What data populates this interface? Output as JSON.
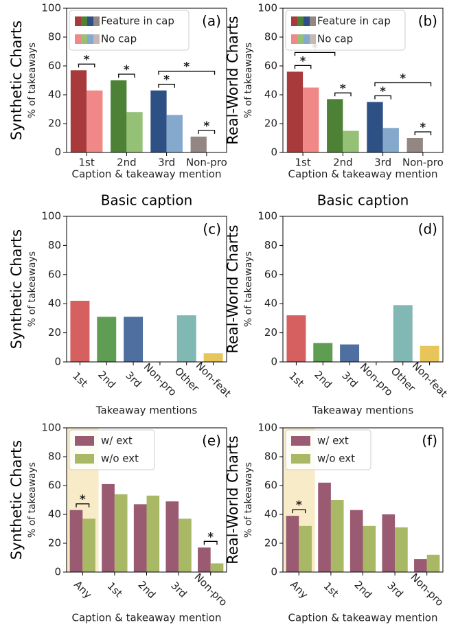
{
  "chart_data": [
    {
      "type": "bar",
      "row_label": "Synthetic Charts",
      "ylabel": "% of takeaways",
      "xlabel": "Caption & takeaway mention",
      "panel": "(a)",
      "categories": [
        "1st",
        "2nd",
        "3rd",
        "Non-pro"
      ],
      "series": [
        {
          "name": "Feature in cap",
          "colors": [
            "#a83a3c",
            "#4d8236",
            "#2d5085",
            "#938683"
          ],
          "values": [
            57,
            50,
            43,
            11
          ]
        },
        {
          "name": "No cap",
          "colors": [
            "#f08888",
            "#95c176",
            "#85a9cc",
            "#c5b8b4"
          ],
          "values": [
            43,
            28,
            26,
            null
          ]
        }
      ],
      "ylim": [
        0,
        100
      ],
      "yticks": [
        0,
        20,
        40,
        60,
        80,
        100
      ],
      "legend": "upper left",
      "significance": [
        {
          "text": "*",
          "pair": [
            [
              0,
              0
            ],
            [
              1,
              0
            ]
          ]
        },
        {
          "text": "*",
          "pair": [
            [
              0,
              1
            ],
            [
              1,
              1
            ]
          ]
        },
        {
          "text": "*",
          "pair": [
            [
              0,
              2
            ],
            [
              1,
              2
            ]
          ]
        },
        {
          "text": "*",
          "pair": [
            [
              0,
              2
            ],
            [
              1,
              3
            ]
          ]
        },
        {
          "text": "*",
          "pair": [
            [
              0,
              3
            ],
            [
              1,
              3
            ]
          ]
        }
      ]
    },
    {
      "type": "bar",
      "row_label": "Real-World Charts",
      "ylabel": "% of takeaways",
      "xlabel": "Caption & takeaway mention",
      "panel": "(b)",
      "categories": [
        "1st",
        "2nd",
        "3rd",
        "Non-pro"
      ],
      "series": [
        {
          "name": "Feature in cap",
          "colors": [
            "#a83a3c",
            "#4d8236",
            "#2d5085",
            "#938683"
          ],
          "values": [
            56,
            37,
            35,
            10
          ]
        },
        {
          "name": "No cap",
          "colors": [
            "#f08888",
            "#95c176",
            "#85a9cc",
            "#c5b8b4"
          ],
          "values": [
            45,
            15,
            17,
            null
          ]
        }
      ],
      "ylim": [
        0,
        100
      ],
      "yticks": [
        0,
        20,
        40,
        60,
        80,
        100
      ],
      "legend": "upper left",
      "significance": [
        {
          "text": "*",
          "pair": [
            [
              0,
              0
            ],
            [
              1,
              0
            ]
          ]
        },
        {
          "text": "*",
          "pair": [
            [
              0,
              0
            ],
            [
              0,
              1
            ]
          ]
        },
        {
          "text": "*",
          "pair": [
            [
              0,
              1
            ],
            [
              1,
              1
            ]
          ]
        },
        {
          "text": "*",
          "pair": [
            [
              0,
              2
            ],
            [
              1,
              2
            ]
          ]
        },
        {
          "text": "*",
          "pair": [
            [
              0,
              2
            ],
            [
              1,
              3
            ]
          ]
        },
        {
          "text": "*",
          "pair": [
            [
              0,
              3
            ],
            [
              1,
              3
            ]
          ]
        }
      ]
    },
    {
      "type": "bar",
      "title": "Basic caption",
      "row_label": "Synthetic Charts",
      "ylabel": "% of takeaways",
      "xlabel": "Takeaway mentions",
      "panel": "(c)",
      "categories": [
        "1st",
        "2nd",
        "3rd",
        "Non-pro",
        "Other",
        "Non-feat"
      ],
      "series": [
        {
          "colors": [
            "#d65f5f",
            "#5f9e52",
            "#4f6fa0",
            "#938683",
            "#82b8b3",
            "#e8c558"
          ],
          "values": [
            42,
            31,
            31,
            0,
            32,
            6
          ]
        }
      ],
      "ylim": [
        0,
        100
      ],
      "yticks": [
        0,
        20,
        40,
        60,
        80,
        100
      ],
      "xtick_rotation": 45
    },
    {
      "type": "bar",
      "title": "Basic caption",
      "row_label": "Real-World Charts",
      "ylabel": "% of takeaways",
      "xlabel": "Takeaway mentions",
      "panel": "(d)",
      "categories": [
        "1st",
        "2nd",
        "3rd",
        "Non-pro",
        "Other",
        "Non-feat"
      ],
      "series": [
        {
          "colors": [
            "#d65f5f",
            "#5f9e52",
            "#4f6fa0",
            "#938683",
            "#82b8b3",
            "#e8c558"
          ],
          "values": [
            32,
            13,
            12,
            0,
            39,
            11
          ]
        }
      ],
      "ylim": [
        0,
        100
      ],
      "yticks": [
        0,
        20,
        40,
        60,
        80,
        100
      ],
      "xtick_rotation": 45
    },
    {
      "type": "bar",
      "row_label": "Synthetic Charts",
      "ylabel": "% of takeaways",
      "xlabel": "Caption & takeaway mention",
      "panel": "(e)",
      "categories": [
        "Any",
        "1st",
        "2nd",
        "3rd",
        "Non-pro"
      ],
      "series": [
        {
          "name": "w/ ext",
          "color": "#9a5a72",
          "values": [
            43,
            61,
            47,
            49,
            17
          ]
        },
        {
          "name": "w/o ext",
          "color": "#a8b865",
          "values": [
            37,
            54,
            53,
            37,
            6
          ]
        }
      ],
      "ylim": [
        0,
        100
      ],
      "yticks": [
        0,
        20,
        40,
        60,
        80,
        100
      ],
      "xtick_rotation": 45,
      "legend": "upper left",
      "highlight": {
        "category": 0,
        "color": "#f7ebc8"
      },
      "significance": [
        {
          "text": "*",
          "pair": [
            [
              0,
              0
            ],
            [
              1,
              0
            ]
          ]
        },
        {
          "text": "*",
          "pair": [
            [
              0,
              4
            ],
            [
              1,
              4
            ]
          ]
        }
      ]
    },
    {
      "type": "bar",
      "row_label": "Real-World Charts",
      "ylabel": "% of takeaways",
      "xlabel": "Caption & takeaway mention",
      "panel": "(f)",
      "categories": [
        "Any",
        "1st",
        "2nd",
        "3rd",
        "Non-pro"
      ],
      "series": [
        {
          "name": "w/ ext",
          "color": "#9a5a72",
          "values": [
            39,
            62,
            43,
            40,
            9
          ]
        },
        {
          "name": "w/o ext",
          "color": "#a8b865",
          "values": [
            32,
            50,
            32,
            31,
            12
          ]
        }
      ],
      "ylim": [
        0,
        100
      ],
      "yticks": [
        0,
        20,
        40,
        60,
        80,
        100
      ],
      "xtick_rotation": 45,
      "legend": "upper left",
      "highlight": {
        "category": 0,
        "color": "#f7ebc8"
      },
      "significance": [
        {
          "text": "*",
          "pair": [
            [
              0,
              0
            ],
            [
              1,
              0
            ]
          ]
        }
      ]
    }
  ]
}
